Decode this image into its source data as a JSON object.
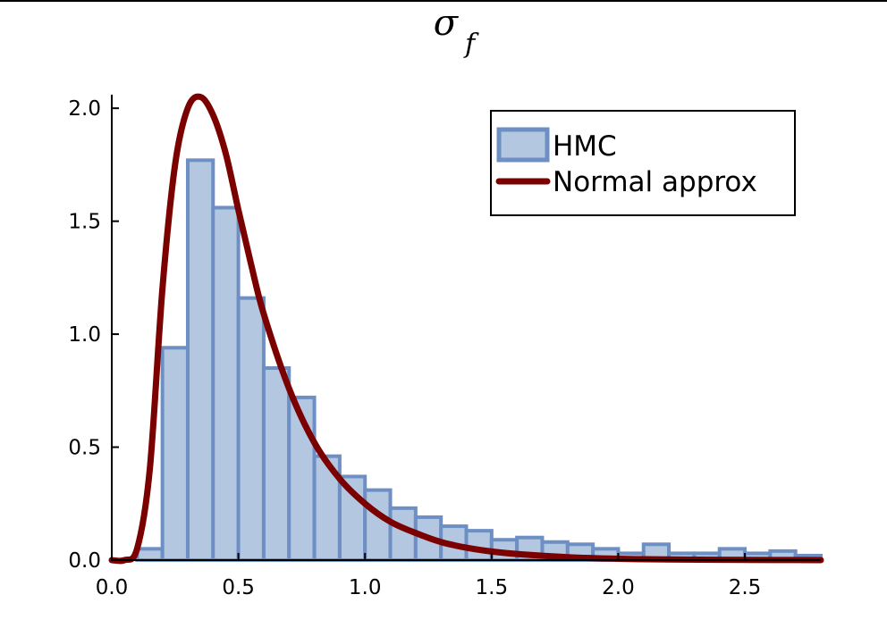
{
  "chart_data": {
    "type": "bar",
    "title": "σ",
    "title_subscript": "f",
    "xlabel": "",
    "ylabel": "",
    "xlim": [
      0.0,
      2.8
    ],
    "ylim": [
      0.0,
      2.06
    ],
    "xticks": [
      0.0,
      0.5,
      1.0,
      1.5,
      2.0,
      2.5
    ],
    "xtick_labels": [
      "0.0",
      "0.5",
      "1.0",
      "1.5",
      "2.0",
      "2.5"
    ],
    "yticks": [
      0.0,
      0.5,
      1.0,
      1.5,
      2.0
    ],
    "ytick_labels": [
      "0.0",
      "0.5",
      "1.0",
      "1.5",
      "2.0"
    ],
    "grid": false,
    "legend_position": "top-right",
    "bin_width": 0.1,
    "series": [
      {
        "name": "HMC",
        "kind": "histogram",
        "color": "#6d8fc4",
        "fill": "#b4c7e1",
        "bin_starts": [
          0.1,
          0.2,
          0.3,
          0.4,
          0.5,
          0.6,
          0.7,
          0.8,
          0.9,
          1.0,
          1.1,
          1.2,
          1.3,
          1.4,
          1.5,
          1.6,
          1.7,
          1.8,
          1.9,
          2.0,
          2.1,
          2.2,
          2.3,
          2.4,
          2.5,
          2.6,
          2.7
        ],
        "values": [
          0.05,
          0.94,
          1.77,
          1.56,
          1.16,
          0.85,
          0.72,
          0.46,
          0.37,
          0.31,
          0.23,
          0.19,
          0.15,
          0.13,
          0.09,
          0.1,
          0.08,
          0.07,
          0.05,
          0.03,
          0.07,
          0.03,
          0.03,
          0.05,
          0.03,
          0.04,
          0.02
        ]
      },
      {
        "name": "Normal approx",
        "kind": "line",
        "color": "#7b0000",
        "x": [
          0.0,
          0.05,
          0.1,
          0.15,
          0.2,
          0.25,
          0.3,
          0.35,
          0.4,
          0.45,
          0.5,
          0.55,
          0.6,
          0.7,
          0.8,
          0.9,
          1.0,
          1.1,
          1.2,
          1.3,
          1.4,
          1.5,
          1.6,
          1.8,
          2.0,
          2.2,
          2.5,
          2.8
        ],
        "y": [
          0.0,
          0.0,
          0.05,
          0.4,
          1.2,
          1.75,
          2.0,
          2.05,
          1.97,
          1.8,
          1.55,
          1.31,
          1.09,
          0.76,
          0.52,
          0.36,
          0.25,
          0.17,
          0.12,
          0.08,
          0.055,
          0.038,
          0.027,
          0.013,
          0.006,
          0.003,
          0.001,
          0.0
        ]
      }
    ]
  }
}
